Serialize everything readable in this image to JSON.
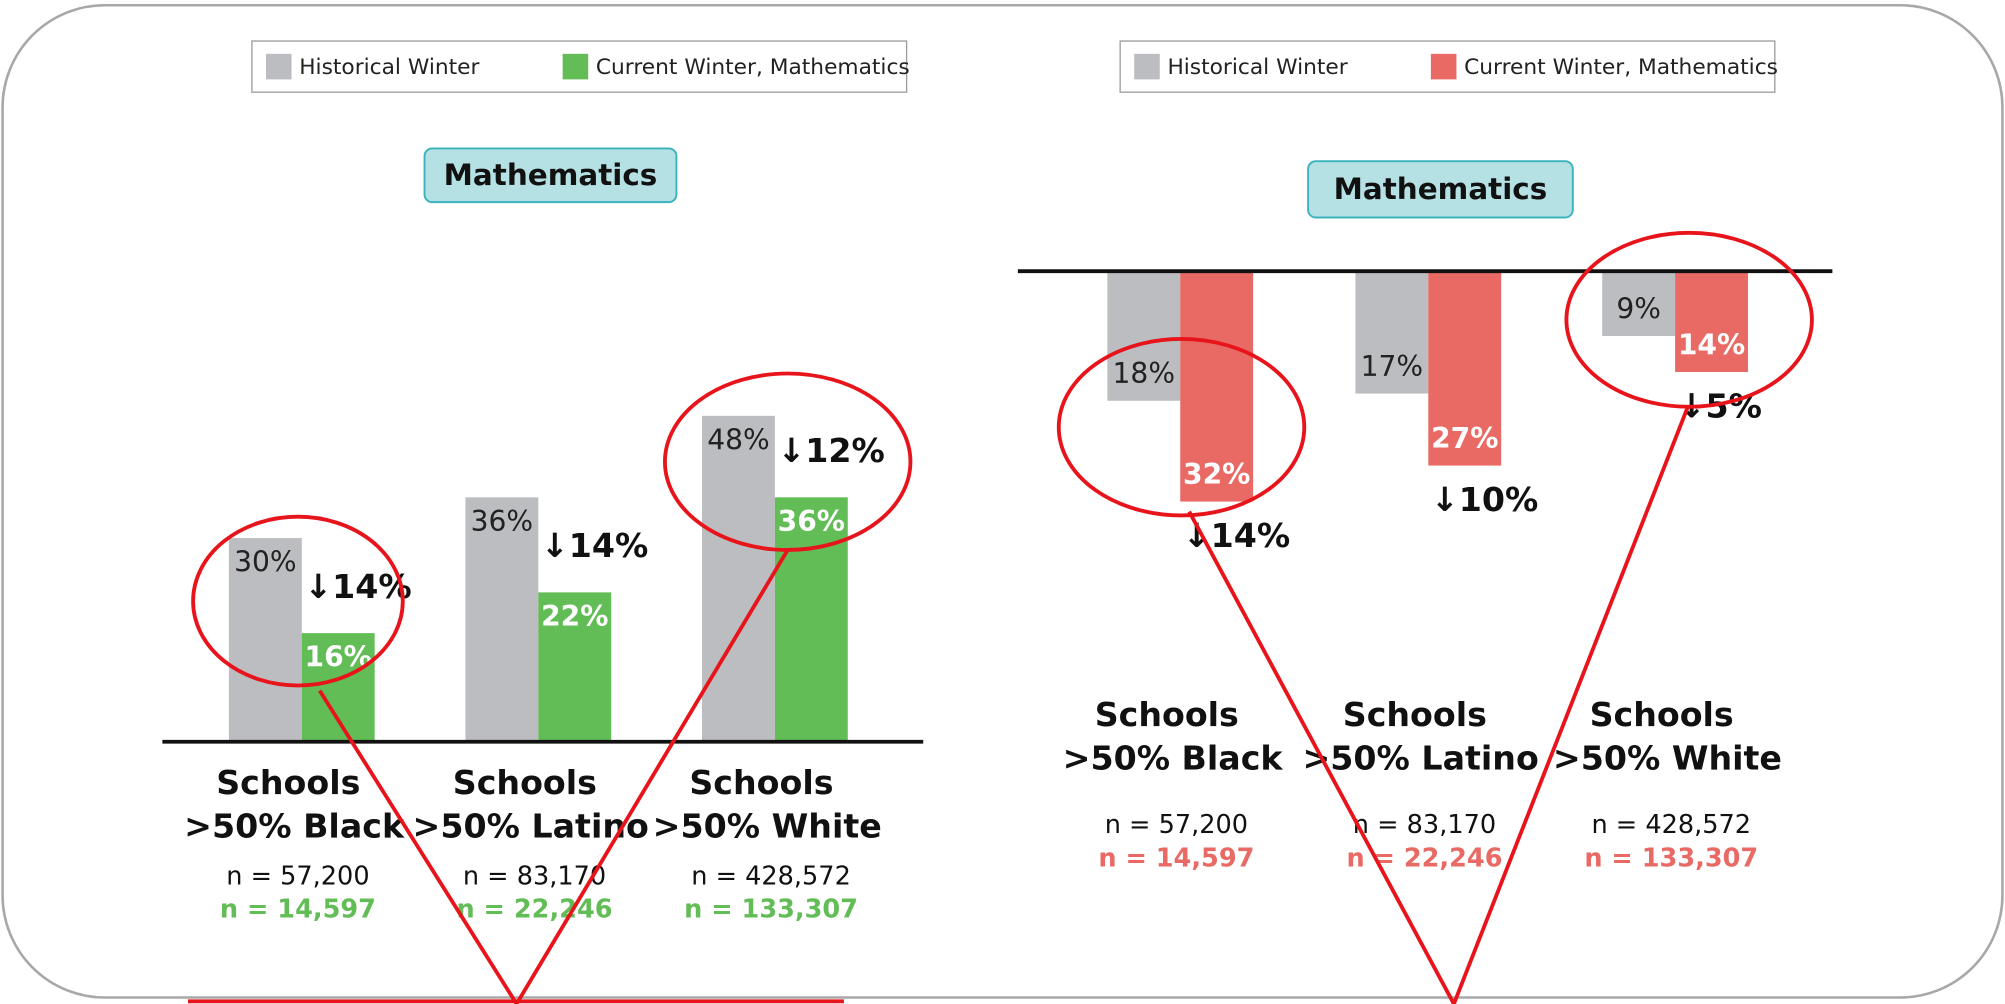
{
  "chart_data": [
    {
      "type": "bar",
      "title": "Mathematics",
      "categories": [
        "Schools >50% Black",
        "Schools >50% Latino",
        "Schools >50% White"
      ],
      "series": [
        {
          "name": "Historical Winter",
          "color": "#bcbdc1",
          "values": [
            30,
            36,
            48
          ],
          "value_labels": [
            "30%",
            "36%",
            "48%"
          ],
          "n_labels": [
            "n = 57,200",
            "n = 83,170",
            "n = 428,572"
          ]
        },
        {
          "name": "Current Winter, Mathematics",
          "color": "#63bd57",
          "values": [
            16,
            22,
            36
          ],
          "value_labels": [
            "16%",
            "22%",
            "36%"
          ],
          "n_labels": [
            "n = 14,597",
            "n = 22,246",
            "n = 133,307"
          ]
        }
      ],
      "annotations": [
        "↓14%",
        "↓14%",
        "↓12%"
      ]
    },
    {
      "type": "bar",
      "title": "Mathematics",
      "y_inverted": true,
      "categories": [
        "Schools >50% Black",
        "Schools >50% Latino",
        "Schools >50% White"
      ],
      "series": [
        {
          "name": "Historical Winter",
          "color": "#bcbdc1",
          "values": [
            18,
            17,
            9
          ],
          "value_labels": [
            "18%",
            "17%",
            "9%"
          ],
          "n_labels": [
            "n = 57,200",
            "n = 83,170",
            "n = 428,572"
          ]
        },
        {
          "name": "Current Winter, Mathematics",
          "color": "#e96a65",
          "values": [
            32,
            27,
            14
          ],
          "value_labels": [
            "32%",
            "27%",
            "14%"
          ],
          "n_labels": [
            "n = 14,597",
            "n = 22,246",
            "n = 133,307"
          ]
        }
      ],
      "annotations": [
        "↓14%",
        "↓10%",
        "↓5%"
      ]
    }
  ]
}
